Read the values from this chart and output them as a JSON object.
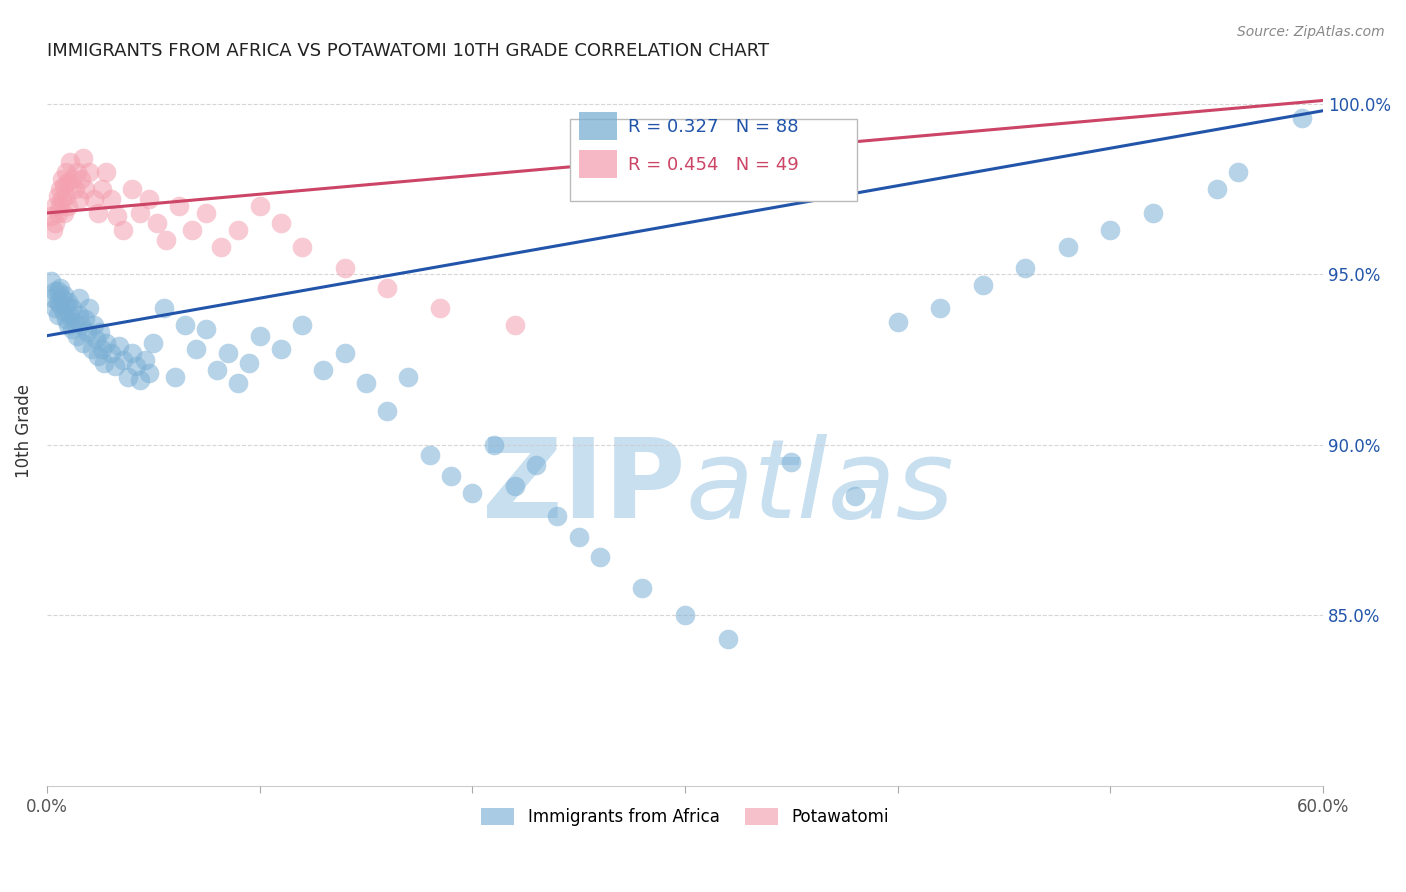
{
  "title": "IMMIGRANTS FROM AFRICA VS POTAWATOMI 10TH GRADE CORRELATION CHART",
  "source": "Source: ZipAtlas.com",
  "ylabel": "10th Grade",
  "legend_label1": "Immigrants from Africa",
  "legend_label2": "Potawatomi",
  "R1": 0.327,
  "N1": 88,
  "R2": 0.454,
  "N2": 49,
  "xlim": [
    0.0,
    0.6
  ],
  "ylim": [
    0.8,
    1.008
  ],
  "xticks": [
    0.0,
    0.1,
    0.2,
    0.3,
    0.4,
    0.5,
    0.6
  ],
  "xticklabels": [
    "0.0%",
    "",
    "",
    "",
    "",
    "",
    "60.0%"
  ],
  "yticks": [
    0.85,
    0.9,
    0.95,
    1.0
  ],
  "yticklabels": [
    "85.0%",
    "90.0%",
    "95.0%",
    "100.0%"
  ],
  "color_blue": "#7BAFD4",
  "color_pink": "#F4A0B0",
  "color_line_blue": "#2255AA",
  "color_line_pink": "#CC4466",
  "watermark_zip": "ZIP",
  "watermark_atlas": "atlas",
  "watermark_color": "#C8DFF0",
  "blue_line_x0": 0.0,
  "blue_line_y0": 0.932,
  "blue_line_x1": 0.6,
  "blue_line_y1": 0.998,
  "pink_line_x0": 0.0,
  "pink_line_y0": 0.968,
  "pink_line_x1": 0.6,
  "pink_line_y1": 1.001,
  "blue_scatter_x": [
    0.002,
    0.003,
    0.004,
    0.004,
    0.005,
    0.005,
    0.005,
    0.006,
    0.006,
    0.007,
    0.008,
    0.008,
    0.009,
    0.009,
    0.01,
    0.01,
    0.011,
    0.012,
    0.012,
    0.013,
    0.014,
    0.015,
    0.015,
    0.016,
    0.017,
    0.018,
    0.019,
    0.02,
    0.021,
    0.022,
    0.023,
    0.024,
    0.025,
    0.026,
    0.027,
    0.028,
    0.03,
    0.032,
    0.034,
    0.036,
    0.038,
    0.04,
    0.042,
    0.044,
    0.046,
    0.048,
    0.05,
    0.055,
    0.06,
    0.065,
    0.07,
    0.075,
    0.08,
    0.085,
    0.09,
    0.095,
    0.1,
    0.11,
    0.12,
    0.13,
    0.14,
    0.15,
    0.16,
    0.17,
    0.18,
    0.19,
    0.2,
    0.21,
    0.22,
    0.23,
    0.24,
    0.25,
    0.26,
    0.28,
    0.3,
    0.32,
    0.35,
    0.38,
    0.4,
    0.42,
    0.44,
    0.46,
    0.48,
    0.5,
    0.52,
    0.55,
    0.56,
    0.59
  ],
  "blue_scatter_y": [
    0.948,
    0.943,
    0.945,
    0.94,
    0.942,
    0.945,
    0.938,
    0.946,
    0.941,
    0.943,
    0.939,
    0.944,
    0.937,
    0.941,
    0.935,
    0.942,
    0.938,
    0.934,
    0.94,
    0.936,
    0.932,
    0.938,
    0.943,
    0.935,
    0.93,
    0.937,
    0.933,
    0.94,
    0.928,
    0.935,
    0.931,
    0.926,
    0.933,
    0.928,
    0.924,
    0.93,
    0.927,
    0.923,
    0.929,
    0.925,
    0.92,
    0.927,
    0.923,
    0.919,
    0.925,
    0.921,
    0.93,
    0.94,
    0.92,
    0.935,
    0.928,
    0.934,
    0.922,
    0.927,
    0.918,
    0.924,
    0.932,
    0.928,
    0.935,
    0.922,
    0.927,
    0.918,
    0.91,
    0.92,
    0.897,
    0.891,
    0.886,
    0.9,
    0.888,
    0.894,
    0.879,
    0.873,
    0.867,
    0.858,
    0.85,
    0.843,
    0.895,
    0.885,
    0.936,
    0.94,
    0.947,
    0.952,
    0.958,
    0.963,
    0.968,
    0.975,
    0.98,
    0.996
  ],
  "pink_scatter_x": [
    0.002,
    0.003,
    0.004,
    0.004,
    0.005,
    0.005,
    0.006,
    0.006,
    0.007,
    0.007,
    0.008,
    0.008,
    0.009,
    0.009,
    0.01,
    0.01,
    0.011,
    0.012,
    0.013,
    0.014,
    0.015,
    0.016,
    0.017,
    0.018,
    0.02,
    0.022,
    0.024,
    0.026,
    0.028,
    0.03,
    0.033,
    0.036,
    0.04,
    0.044,
    0.048,
    0.052,
    0.056,
    0.062,
    0.068,
    0.075,
    0.082,
    0.09,
    0.1,
    0.11,
    0.12,
    0.14,
    0.16,
    0.185,
    0.22
  ],
  "pink_scatter_y": [
    0.967,
    0.963,
    0.97,
    0.965,
    0.973,
    0.968,
    0.975,
    0.97,
    0.978,
    0.972,
    0.976,
    0.968,
    0.98,
    0.973,
    0.977,
    0.97,
    0.983,
    0.978,
    0.975,
    0.98,
    0.972,
    0.978,
    0.984,
    0.975,
    0.98,
    0.972,
    0.968,
    0.975,
    0.98,
    0.972,
    0.967,
    0.963,
    0.975,
    0.968,
    0.972,
    0.965,
    0.96,
    0.97,
    0.963,
    0.968,
    0.958,
    0.963,
    0.97,
    0.965,
    0.958,
    0.952,
    0.946,
    0.94,
    0.935
  ]
}
